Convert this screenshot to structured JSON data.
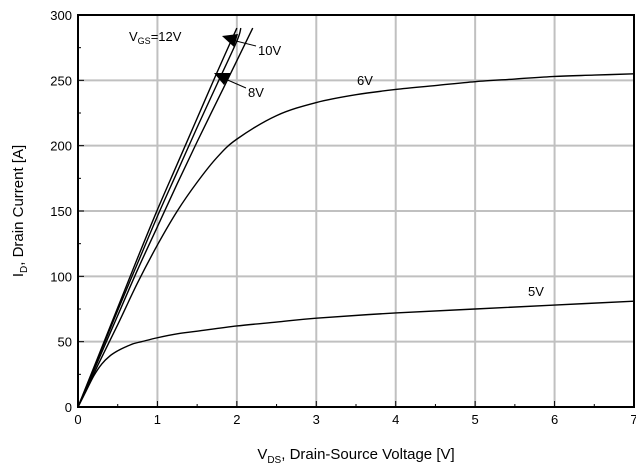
{
  "chart_data": {
    "type": "line",
    "title": "",
    "xlabel": {
      "main": "V",
      "sub": "DS",
      "rest": ", Drain-Source Voltage [V]"
    },
    "ylabel": {
      "main": "I",
      "sub": "D",
      "rest": ", Drain Current [A]"
    },
    "xlim": [
      0,
      7
    ],
    "ylim": [
      0,
      300
    ],
    "xticks": [
      "0",
      "1",
      "2",
      "3",
      "4",
      "5",
      "6",
      "7"
    ],
    "yticks": [
      "0",
      "50",
      "100",
      "150",
      "200",
      "250",
      "300"
    ],
    "grid": true,
    "legend": "none",
    "series": [
      {
        "name": "VGS=12V",
        "x": [
          0,
          0.25,
          0.5,
          0.75,
          1.0,
          1.25,
          1.5,
          1.75,
          2.0
        ],
        "y": [
          0,
          38,
          76,
          114,
          151,
          186,
          221,
          256,
          290
        ]
      },
      {
        "name": "10V",
        "x": [
          0,
          0.25,
          0.5,
          0.75,
          1.0,
          1.25,
          1.5,
          1.75,
          2.0,
          2.05
        ],
        "y": [
          0,
          37,
          74,
          110,
          146,
          180,
          214,
          247,
          280,
          290
        ]
      },
      {
        "name": "8V",
        "x": [
          0,
          0.25,
          0.5,
          0.75,
          1.0,
          1.25,
          1.5,
          1.75,
          2.0,
          2.2
        ],
        "y": [
          0,
          35,
          70,
          105,
          138,
          171,
          203,
          234,
          265,
          290
        ]
      },
      {
        "name": "6V",
        "x": [
          0,
          0.25,
          0.5,
          0.75,
          1.0,
          1.25,
          1.5,
          1.75,
          2.0,
          2.5,
          3.0,
          3.5,
          4.0,
          4.5,
          5.0,
          5.5,
          6.0,
          6.5,
          7.0
        ],
        "y": [
          0,
          32,
          63,
          95,
          124,
          150,
          172,
          191,
          205,
          223,
          233,
          239,
          243,
          246,
          249,
          251,
          253,
          254,
          255
        ]
      },
      {
        "name": "5V",
        "x": [
          0,
          0.1,
          0.2,
          0.3,
          0.4,
          0.5,
          0.6,
          0.7,
          0.8,
          1.0,
          1.25,
          1.5,
          2.0,
          2.5,
          3.0,
          4.0,
          5.0,
          6.0,
          7.0
        ],
        "y": [
          0,
          12,
          24,
          33,
          39,
          43,
          46,
          48.5,
          50,
          53,
          56,
          58,
          62,
          65,
          68,
          72,
          75,
          78,
          81
        ]
      }
    ],
    "annotations": [
      {
        "text_main": "V",
        "text_sub": "GS",
        "text_rest": "=12V",
        "kind": "label"
      },
      {
        "text": "10V",
        "kind": "arrow"
      },
      {
        "text": "8V",
        "kind": "arrow"
      },
      {
        "text": "6V",
        "kind": "label"
      },
      {
        "text": "5V",
        "kind": "label"
      }
    ]
  }
}
